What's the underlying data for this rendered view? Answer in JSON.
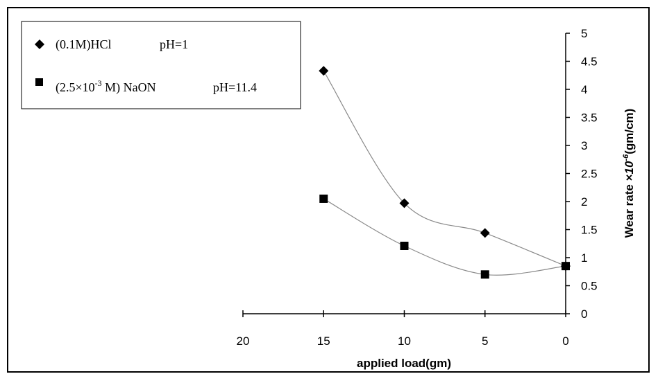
{
  "chart_data": {
    "type": "scatter",
    "xlabel": "applied load(gm)",
    "ylabel_main": "Wear rate ×",
    "ylabel_exp": "10",
    "ylabel_sup": "-6",
    "ylabel_unit": "(gm/cm)",
    "xlim": [
      20,
      0
    ],
    "ylim": [
      0,
      5
    ],
    "x_ticks": [
      "20",
      "15",
      "10",
      "5",
      "0"
    ],
    "x_tick_values": [
      20,
      15,
      10,
      5,
      0
    ],
    "y_ticks": [
      "0",
      "0.5",
      "1",
      "1.5",
      "2",
      "2.5",
      "3",
      "3.5",
      "4",
      "4.5",
      "5"
    ],
    "y_tick_values": [
      0,
      0.5,
      1,
      1.5,
      2,
      2.5,
      3,
      3.5,
      4,
      4.5,
      5
    ],
    "legend_placement": "top-left",
    "smooth_lines": true,
    "series": [
      {
        "name": "(0.1M)HCl",
        "name_ph": "pH=1",
        "marker": "diamond",
        "color": "#000000",
        "x": [
          15,
          10,
          5,
          0
        ],
        "y": [
          4.33,
          1.97,
          1.44,
          0.85
        ]
      },
      {
        "name_pre": "(2.5×10",
        "name_sup": "-3",
        "name_post": " M) NaON",
        "name_ph": "pH=11.4",
        "marker": "square",
        "color": "#000000",
        "x": [
          15,
          10,
          5,
          0
        ],
        "y": [
          2.05,
          1.21,
          0.7,
          0.85
        ]
      }
    ]
  }
}
